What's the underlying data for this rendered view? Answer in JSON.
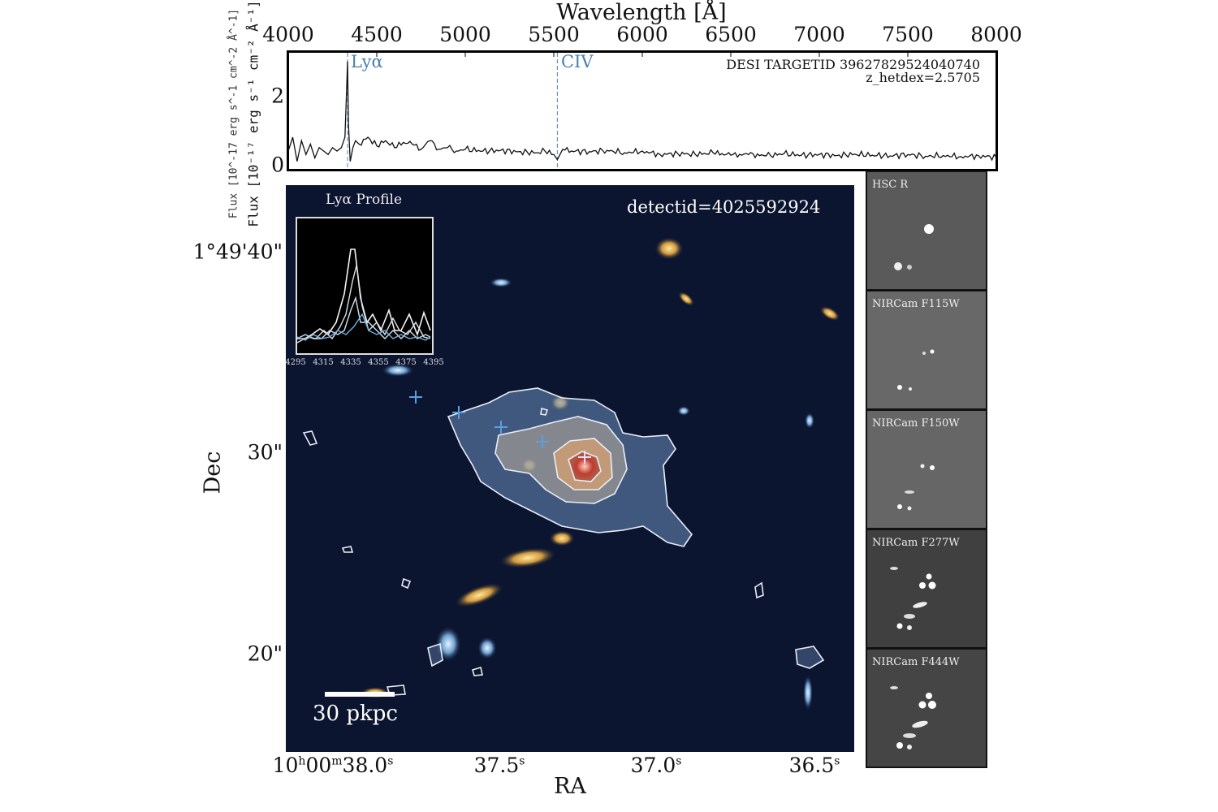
{
  "spectrum": {
    "xlabel": "Wavelength [Å]",
    "ylabel": "Flux [10⁻¹⁷ erg s⁻¹ cm⁻² Å⁻¹]",
    "xticks": [
      "4000",
      "4500",
      "5000",
      "5500",
      "6000",
      "6500",
      "7000",
      "7500",
      "8000"
    ],
    "yticks": [
      "0",
      "2"
    ],
    "annotation_id": "DESI TARGETID 39627829524040740",
    "annotation_z": "z_hetdex=2.5705",
    "lines": [
      {
        "label": "Lyα",
        "wavelength": 4335
      },
      {
        "label": "CIV",
        "wavelength": 5520
      }
    ],
    "line_color": "#4a7fb0"
  },
  "chart_data": {
    "type": "line",
    "xlabel": "Wavelength [Å]",
    "ylabel": "Flux [10^-17 erg s^-1 cm^-2 Å^-1]",
    "xlim": [
      4000,
      8000
    ],
    "ylim": [
      0,
      3.3
    ],
    "x": [
      4000,
      4025,
      4050,
      4075,
      4100,
      4125,
      4150,
      4175,
      4200,
      4225,
      4250,
      4275,
      4300,
      4320,
      4330,
      4335,
      4340,
      4350,
      4365,
      4380,
      4400,
      4450,
      4500,
      4550,
      4600,
      4650,
      4700,
      4750,
      4800,
      4850,
      4900,
      4950,
      5000,
      5100,
      5200,
      5300,
      5400,
      5450,
      5500,
      5520,
      5550,
      5600,
      5700,
      5800,
      5900,
      6000,
      6100,
      6200,
      6300,
      6400,
      6500,
      6600,
      6700,
      6800,
      6900,
      7000,
      7100,
      7200,
      7300,
      7400,
      7500,
      7600,
      7700,
      7800,
      7900,
      8000
    ],
    "y": [
      0.4,
      0.8,
      0.1,
      0.7,
      0.3,
      0.6,
      0.2,
      0.5,
      0.4,
      0.3,
      0.5,
      0.4,
      0.5,
      0.8,
      2.2,
      3.0,
      1.2,
      0.1,
      0.5,
      0.7,
      0.6,
      0.8,
      0.55,
      0.7,
      0.5,
      0.65,
      0.6,
      0.45,
      0.7,
      0.45,
      0.5,
      0.4,
      0.45,
      0.4,
      0.42,
      0.38,
      0.35,
      0.4,
      0.3,
      0.15,
      0.45,
      0.4,
      0.38,
      0.42,
      0.35,
      0.4,
      0.3,
      0.33,
      0.3,
      0.35,
      0.28,
      0.3,
      0.26,
      0.32,
      0.28,
      0.3,
      0.27,
      0.31,
      0.28,
      0.26,
      0.3,
      0.25,
      0.27,
      0.24,
      0.26,
      0.22
    ]
  },
  "image": {
    "detectid": "detectid=4025592924",
    "xlabel": "RA",
    "ylabel": "Dec",
    "ra_ticks": [
      {
        "h": "10",
        "hs": "h",
        "m": "00",
        "ms": "m",
        "s": "38.0",
        "ss": "s"
      },
      {
        "s": "37.5",
        "ss": "s"
      },
      {
        "s": "37.0",
        "ss": "s"
      },
      {
        "s": "36.5",
        "ss": "s"
      }
    ],
    "dec_ticks": [
      "1°49'40\"",
      "30\"",
      "20\""
    ],
    "scalebar": "30 pkpc",
    "inset": {
      "title": "Lyα Profile",
      "xticks": [
        "4295",
        "4315",
        "4335",
        "4355",
        "4375",
        "4395"
      ]
    }
  },
  "thumbnails": [
    {
      "label": "HSC  R"
    },
    {
      "label": "NIRCam F115W"
    },
    {
      "label": "NIRCam F150W"
    },
    {
      "label": "NIRCam F277W"
    },
    {
      "label": "NIRCam F444W"
    }
  ]
}
